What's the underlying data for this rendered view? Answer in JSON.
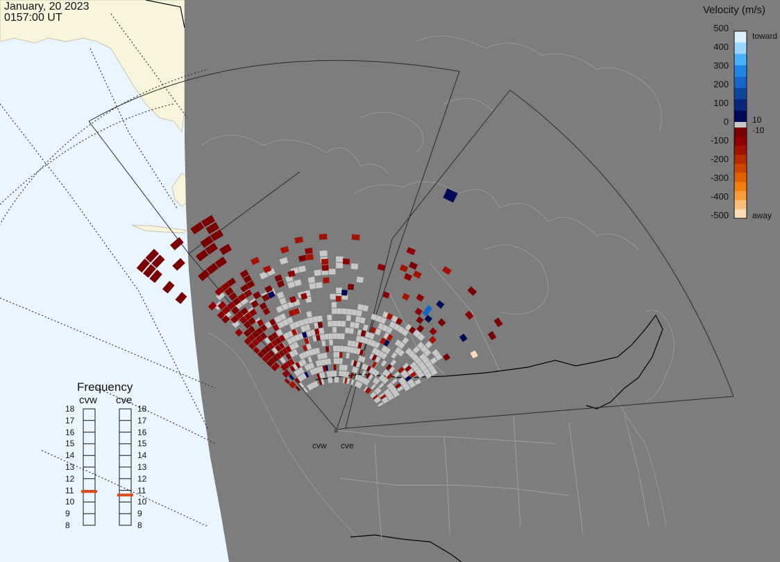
{
  "header": {
    "date": "January, 20 2023",
    "time": "0157:00 UT"
  },
  "colorbar": {
    "title": "Velocity (m/s)",
    "ticks": [
      "500",
      "400",
      "300",
      "200",
      "100",
      "0",
      "-100",
      "-200",
      "-300",
      "-400",
      "-500"
    ],
    "side_labels": {
      "toward": "toward",
      "away": "away",
      "plus": "10",
      "minus": "-10"
    },
    "positive_colors": [
      "#d8f0ff",
      "#9ad6ff",
      "#48b2ff",
      "#1e86e6",
      "#1566c8",
      "#0d47a0",
      "#06277a",
      "#000b57"
    ],
    "negative_colors": [
      "#7a0000",
      "#8e0000",
      "#a31100",
      "#b82a00",
      "#cd4600",
      "#e36200",
      "#f27e10",
      "#fb9c3c",
      "#fdbd7a",
      "#ffdcb8"
    ],
    "ground_scatter_color": "#c8c8c8"
  },
  "radars": {
    "west": {
      "label": "cvw"
    },
    "east": {
      "label": "cve"
    }
  },
  "frequency": {
    "title": "Frequency",
    "columns": [
      "cvw",
      "cve"
    ],
    "scale": [
      "18",
      "17",
      "16",
      "15",
      "14",
      "13",
      "12",
      "11",
      "10",
      "9",
      "8"
    ],
    "scale_min": 8,
    "scale_max": 18,
    "cvw_mhz": 10.9,
    "cve_mhz": 10.6,
    "marker_color": "#e04a1a"
  },
  "map": {
    "night_color": "#7d7d7d",
    "day_ocean_color": "#eaf6ff",
    "day_land_color": "#f8f5dc"
  }
}
